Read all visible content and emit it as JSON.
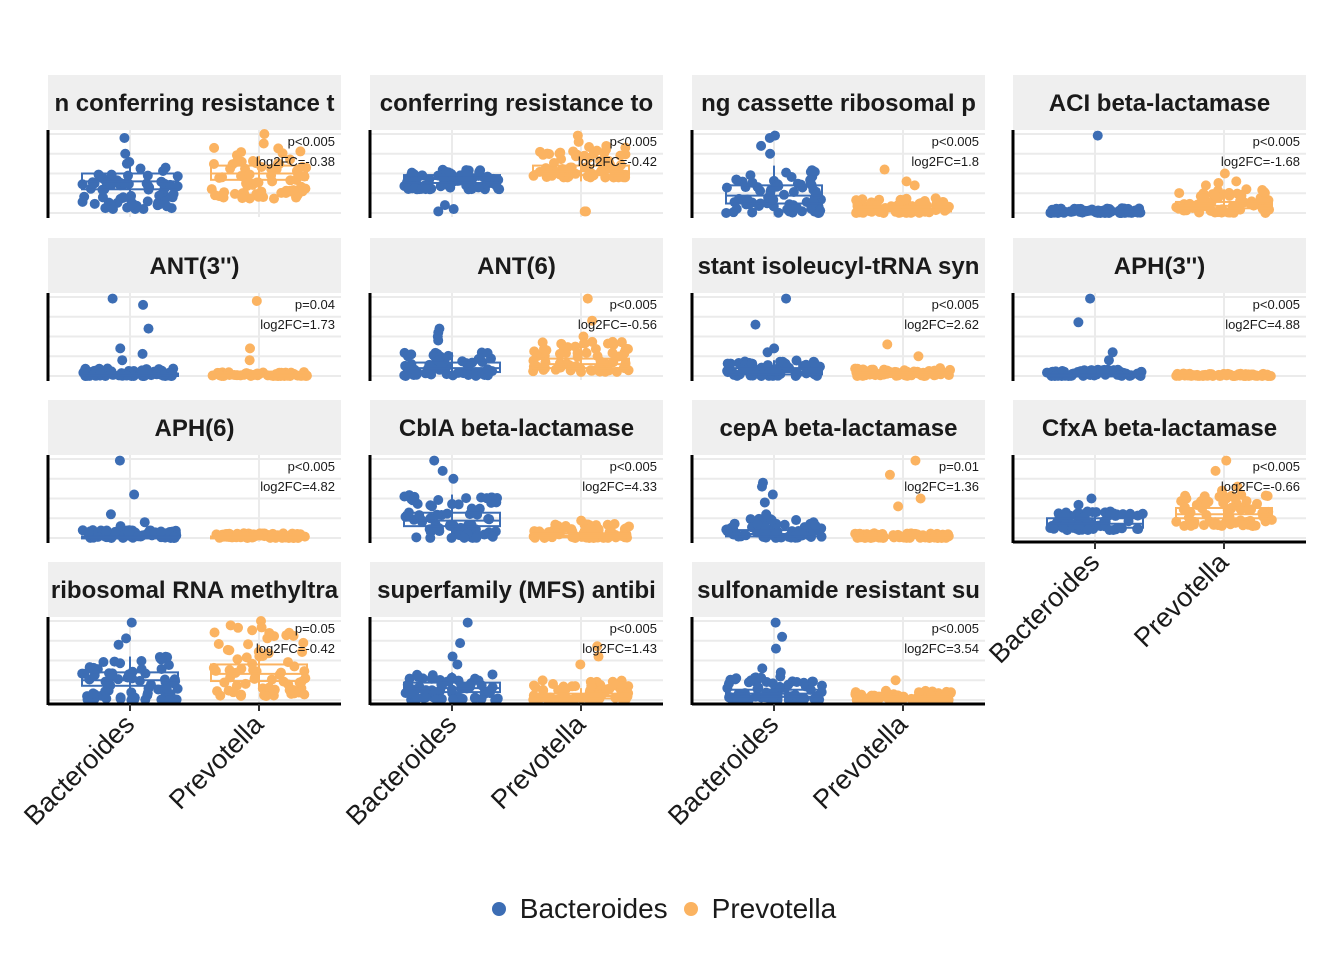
{
  "chart_data": {
    "type": "box-jitter-facet",
    "categories": [
      "Bacteroides",
      "Prevotella"
    ],
    "colors": {
      "Bacteroides": "#3c6db4",
      "Prevotella": "#fbb361"
    },
    "legend": {
      "position": "bottom",
      "items": [
        "Bacteroides",
        "Prevotella"
      ]
    },
    "facets": [
      {
        "title": "n conferring resistance t",
        "p": "p<0.005",
        "fc": "log2FC=-0.38",
        "ylim": [
          0,
          1
        ],
        "Bacteroides": {
          "box": [
            0.2,
            0.3,
            0.4,
            0.5,
            0.6
          ],
          "spread": [
            0.05,
            0.65
          ],
          "outliers": [
            0.95,
            0.75
          ]
        },
        "Prevotella": {
          "box": [
            0.3,
            0.42,
            0.5,
            0.6,
            0.72
          ],
          "spread": [
            0.18,
            0.85
          ],
          "outliers": [
            1.0,
            0.88
          ]
        }
      },
      {
        "title": "conferring resistance to",
        "p": "p<0.005",
        "fc": "log2FC=-0.42",
        "ylim": [
          0,
          1
        ],
        "Bacteroides": {
          "box": [
            0.3,
            0.38,
            0.43,
            0.48,
            0.56
          ],
          "spread": [
            0.3,
            0.55
          ],
          "outliers": [
            0.02,
            0.05,
            0.1
          ]
        },
        "Prevotella": {
          "box": [
            0.4,
            0.48,
            0.53,
            0.6,
            0.7
          ],
          "spread": [
            0.45,
            0.85
          ],
          "outliers": [
            0.02,
            0.02,
            0.98,
            0.9
          ]
        }
      },
      {
        "title": "ng cassette ribosomal p",
        "p": "p<0.005",
        "fc": "log2FC=1.8",
        "ylim": [
          0,
          1
        ],
        "Bacteroides": {
          "box": [
            0.05,
            0.12,
            0.22,
            0.35,
            0.6
          ],
          "spread": [
            0.0,
            0.55
          ],
          "outliers": [
            0.98,
            0.95,
            0.85,
            0.75
          ]
        },
        "Prevotella": {
          "box": [
            0.0,
            0.02,
            0.04,
            0.08,
            0.15
          ],
          "spread": [
            0.0,
            0.2
          ],
          "outliers": [
            0.55,
            0.4,
            0.35
          ]
        }
      },
      {
        "title": "ACI beta-lactamase",
        "p": "p<0.005",
        "fc": "log2FC=-1.68",
        "ylim": [
          0,
          1
        ],
        "Bacteroides": {
          "box": [
            0.0,
            0.01,
            0.02,
            0.03,
            0.06
          ],
          "spread": [
            0.0,
            0.06
          ],
          "outliers": [
            0.98
          ]
        },
        "Prevotella": {
          "box": [
            0.02,
            0.06,
            0.09,
            0.14,
            0.3
          ],
          "spread": [
            0.0,
            0.32
          ],
          "outliers": [
            0.5,
            0.4,
            0.38,
            0.35
          ]
        }
      },
      {
        "title": "ANT(3'')",
        "p": "p=0.04",
        "fc": "log2FC=1.73",
        "ylim": [
          0,
          1
        ],
        "Bacteroides": {
          "box": [
            0.0,
            0.0,
            0.01,
            0.03,
            0.06
          ],
          "spread": [
            0.0,
            0.1
          ],
          "outliers": [
            0.98,
            0.9,
            0.6,
            0.35,
            0.28,
            0.2
          ]
        },
        "Prevotella": {
          "box": [
            0.0,
            0.0,
            0.01,
            0.02,
            0.05
          ],
          "spread": [
            0.0,
            0.05
          ],
          "outliers": [
            0.95,
            0.35,
            0.2
          ]
        }
      },
      {
        "title": "ANT(6)",
        "p": "p<0.005",
        "fc": "log2FC=-0.56",
        "ylim": [
          0,
          1
        ],
        "Bacteroides": {
          "box": [
            0.0,
            0.05,
            0.1,
            0.17,
            0.3
          ],
          "spread": [
            0.0,
            0.3
          ],
          "outliers": [
            0.6,
            0.55,
            0.5,
            0.45
          ]
        },
        "Prevotella": {
          "box": [
            0.05,
            0.1,
            0.15,
            0.22,
            0.4
          ],
          "spread": [
            0.05,
            0.45
          ],
          "outliers": [
            0.98,
            0.7,
            0.5
          ]
        }
      },
      {
        "title": "stant isoleucyl-tRNA syn",
        "p": "p<0.005",
        "fc": "log2FC=2.62",
        "ylim": [
          0,
          1
        ],
        "Bacteroides": {
          "box": [
            0.0,
            0.02,
            0.05,
            0.1,
            0.2
          ],
          "spread": [
            0.0,
            0.2
          ],
          "outliers": [
            0.98,
            0.65,
            0.35,
            0.3
          ]
        },
        "Prevotella": {
          "box": [
            0.0,
            0.0,
            0.02,
            0.04,
            0.08
          ],
          "spread": [
            0.0,
            0.1
          ],
          "outliers": [
            0.4,
            0.25
          ]
        }
      },
      {
        "title": "APH(3'')",
        "p": "p<0.005",
        "fc": "log2FC=4.88",
        "ylim": [
          0,
          1
        ],
        "Bacteroides": {
          "box": [
            0.0,
            0.0,
            0.01,
            0.02,
            0.04
          ],
          "spread": [
            0.0,
            0.08
          ],
          "outliers": [
            0.98,
            0.68,
            0.3,
            0.2
          ]
        },
        "Prevotella": {
          "box": [
            0.0,
            0.0,
            0.01,
            0.02,
            0.03
          ],
          "spread": [
            0.0,
            0.03
          ],
          "outliers": []
        }
      },
      {
        "title": "APH(6)",
        "p": "p<0.005",
        "fc": "log2FC=4.82",
        "ylim": [
          0,
          1
        ],
        "Bacteroides": {
          "box": [
            0.0,
            0.0,
            0.01,
            0.02,
            0.04
          ],
          "spread": [
            0.0,
            0.1
          ],
          "outliers": [
            0.98,
            0.55,
            0.3,
            0.2,
            0.15
          ]
        },
        "Prevotella": {
          "box": [
            0.0,
            0.0,
            0.01,
            0.02,
            0.03
          ],
          "spread": [
            0.0,
            0.06
          ],
          "outliers": []
        }
      },
      {
        "title": "CblA beta-lactamase",
        "p": "p<0.005",
        "fc": "log2FC=4.33",
        "ylim": [
          0,
          1
        ],
        "Bacteroides": {
          "box": [
            0.05,
            0.15,
            0.22,
            0.32,
            0.55
          ],
          "spread": [
            0.0,
            0.55
          ],
          "outliers": [
            0.98,
            0.85,
            0.75
          ]
        },
        "Prevotella": {
          "box": [
            0.0,
            0.01,
            0.03,
            0.06,
            0.12
          ],
          "spread": [
            0.0,
            0.18
          ],
          "outliers": [
            0.22
          ]
        }
      },
      {
        "title": "cepA beta-lactamase",
        "p": "p=0.01",
        "fc": "log2FC=1.36",
        "ylim": [
          0,
          1
        ],
        "Bacteroides": {
          "box": [
            0.0,
            0.02,
            0.05,
            0.1,
            0.25
          ],
          "spread": [
            0.0,
            0.25
          ],
          "outliers": [
            0.7,
            0.65,
            0.55,
            0.45,
            0.3
          ]
        },
        "Prevotella": {
          "box": [
            0.0,
            0.0,
            0.01,
            0.03,
            0.06
          ],
          "spread": [
            0.0,
            0.06
          ],
          "outliers": [
            0.98,
            0.8,
            0.5,
            0.4
          ]
        }
      },
      {
        "title": "CfxA beta-lactamase",
        "p": "p<0.005",
        "fc": "log2FC=-0.66",
        "ylim": [
          0,
          1
        ],
        "Bacteroides": {
          "box": [
            0.1,
            0.13,
            0.18,
            0.25,
            0.35
          ],
          "spread": [
            0.1,
            0.35
          ],
          "outliers": [
            0.5,
            0.42
          ]
        },
        "Prevotella": {
          "box": [
            0.2,
            0.25,
            0.3,
            0.38,
            0.5
          ],
          "spread": [
            0.15,
            0.55
          ],
          "outliers": [
            0.98,
            0.85,
            0.65,
            0.6
          ]
        }
      },
      {
        "title": "ribosomal RNA methyltra",
        "p": "p=0.05",
        "fc": "log2FC=-0.42",
        "ylim": [
          0,
          1
        ],
        "Bacteroides": {
          "box": [
            0.1,
            0.18,
            0.25,
            0.35,
            0.55
          ],
          "spread": [
            0.0,
            0.55
          ],
          "outliers": [
            0.98,
            0.78,
            0.7
          ]
        },
        "Prevotella": {
          "box": [
            0.15,
            0.24,
            0.33,
            0.45,
            0.7
          ],
          "spread": [
            0.05,
            0.95
          ],
          "outliers": [
            1.0
          ]
        }
      },
      {
        "title": "superfamily (MFS) antibi",
        "p": "p<0.005",
        "fc": "log2FC=1.43",
        "ylim": [
          0,
          1
        ],
        "Bacteroides": {
          "box": [
            0.05,
            0.1,
            0.15,
            0.22,
            0.35
          ],
          "spread": [
            0.0,
            0.35
          ],
          "outliers": [
            0.98,
            0.72,
            0.55,
            0.45
          ]
        },
        "Prevotella": {
          "box": [
            0.0,
            0.02,
            0.05,
            0.08,
            0.15
          ],
          "spread": [
            0.0,
            0.25
          ],
          "outliers": [
            0.68,
            0.55,
            0.45
          ]
        }
      },
      {
        "title": "sulfonamide resistant su",
        "p": "p<0.005",
        "fc": "log2FC=3.54",
        "ylim": [
          0,
          1
        ],
        "Bacteroides": {
          "box": [
            0.0,
            0.04,
            0.08,
            0.13,
            0.25
          ],
          "spread": [
            0.0,
            0.3
          ],
          "outliers": [
            0.98,
            0.8,
            0.65,
            0.4,
            0.35
          ]
        },
        "Prevotella": {
          "box": [
            0.0,
            0.01,
            0.02,
            0.04,
            0.08
          ],
          "spread": [
            0.0,
            0.12
          ],
          "outliers": [
            0.25
          ]
        }
      }
    ]
  }
}
